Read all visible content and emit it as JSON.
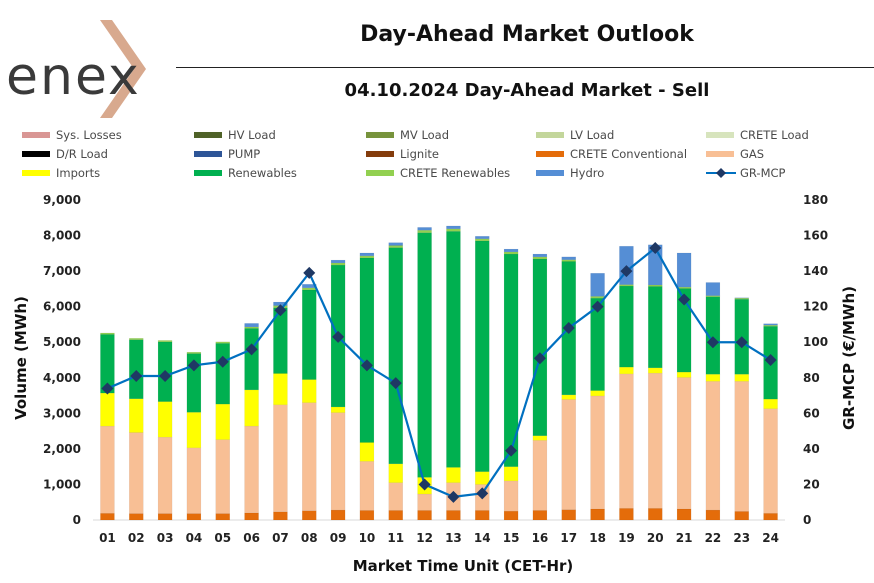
{
  "header": {
    "brand": "enex",
    "title": "Day-Ahead Market Outlook",
    "subtitle": "04.10.2024  Day-Ahead Market - Sell"
  },
  "legend": [
    {
      "label": "Sys. Losses",
      "color": "#d99694",
      "kind": "box"
    },
    {
      "label": "HV Load",
      "color": "#4f6228",
      "kind": "box"
    },
    {
      "label": "MV Load",
      "color": "#77933c",
      "kind": "box"
    },
    {
      "label": "LV Load",
      "color": "#c3d69b",
      "kind": "box"
    },
    {
      "label": "CRETE Load",
      "color": "#d7e4bd",
      "kind": "box"
    },
    {
      "label": "D/R Load",
      "color": "#000000",
      "kind": "box"
    },
    {
      "label": "PUMP",
      "color": "#2e5597",
      "kind": "box"
    },
    {
      "label": "Lignite",
      "color": "#843c0c",
      "kind": "box"
    },
    {
      "label": "CRETE Conventional",
      "color": "#e46c0a",
      "kind": "box"
    },
    {
      "label": "GAS",
      "color": "#f8bf95",
      "kind": "box"
    },
    {
      "label": "Imports",
      "color": "#ffff00",
      "kind": "box"
    },
    {
      "label": "Renewables",
      "color": "#00b050",
      "kind": "box"
    },
    {
      "label": "CRETE Renewables",
      "color": "#92d050",
      "kind": "box"
    },
    {
      "label": "Hydro",
      "color": "#558ed5",
      "kind": "box"
    },
    {
      "label": "GR-MCP",
      "color": "#0070c0",
      "marker_color": "#1f3864",
      "kind": "line"
    }
  ],
  "chart_data": {
    "type": "bar",
    "stacked": true,
    "categories": [
      "01",
      "02",
      "03",
      "04",
      "05",
      "06",
      "07",
      "08",
      "09",
      "10",
      "11",
      "12",
      "13",
      "14",
      "15",
      "16",
      "17",
      "18",
      "19",
      "20",
      "21",
      "22",
      "23",
      "24"
    ],
    "xlabel": "Market Time Unit (CET-Hr)",
    "ylabel": "Volume (MWh)",
    "y2label": "GR-MCP (€/MWh)",
    "ylim": [
      0,
      9000
    ],
    "y2lim": [
      0,
      180
    ],
    "yticks": [
      "0",
      "1,000",
      "2,000",
      "3,000",
      "4,000",
      "5,000",
      "6,000",
      "7,000",
      "8,000",
      "9,000"
    ],
    "y2ticks": [
      "0",
      "20",
      "40",
      "60",
      "80",
      "100",
      "120",
      "140",
      "160",
      "180"
    ],
    "grid": false,
    "legend_position": "top",
    "series": [
      {
        "name": "CRETE Conventional",
        "color": "#e46c0a",
        "values": [
          190,
          180,
          180,
          180,
          180,
          200,
          230,
          260,
          280,
          270,
          270,
          270,
          270,
          270,
          250,
          270,
          290,
          310,
          330,
          330,
          310,
          280,
          240,
          190
        ]
      },
      {
        "name": "GAS",
        "color": "#f8bf95",
        "values": [
          2450,
          2280,
          2150,
          1850,
          2080,
          2440,
          3010,
          3040,
          2740,
          1380,
          780,
          460,
          780,
          730,
          850,
          1970,
          3100,
          3180,
          3780,
          3800,
          3700,
          3620,
          3660,
          2940
        ]
      },
      {
        "name": "Imports",
        "color": "#ffff00",
        "values": [
          930,
          950,
          1000,
          1000,
          1000,
          1020,
          880,
          650,
          160,
          530,
          530,
          470,
          430,
          360,
          400,
          130,
          130,
          150,
          190,
          150,
          150,
          200,
          200,
          270
        ]
      },
      {
        "name": "Renewables",
        "color": "#00b050",
        "values": [
          1650,
          1660,
          1680,
          1650,
          1710,
          1730,
          1850,
          2520,
          3990,
          5190,
          6080,
          6880,
          6640,
          6490,
          5980,
          4970,
          3750,
          2600,
          2280,
          2290,
          2350,
          2180,
          2110,
          2050
        ]
      },
      {
        "name": "CRETE Renewables",
        "color": "#92d050",
        "values": [
          40,
          40,
          40,
          40,
          40,
          40,
          60,
          60,
          60,
          60,
          60,
          70,
          70,
          60,
          60,
          60,
          50,
          50,
          40,
          40,
          40,
          30,
          30,
          30
        ]
      },
      {
        "name": "Hydro",
        "color": "#558ed5",
        "values": [
          0,
          0,
          0,
          0,
          0,
          100,
          100,
          100,
          80,
          80,
          80,
          80,
          80,
          70,
          80,
          80,
          80,
          650,
          1080,
          1130,
          960,
          370,
          10,
          40
        ]
      }
    ],
    "line_series": {
      "name": "GR-MCP",
      "color": "#0070c0",
      "axis": "right",
      "values": [
        74,
        81,
        81,
        87,
        89,
        96,
        118,
        139,
        103,
        87,
        77,
        20,
        13,
        15,
        39,
        91,
        108,
        120,
        140,
        153,
        124,
        100,
        100,
        90
      ]
    }
  }
}
